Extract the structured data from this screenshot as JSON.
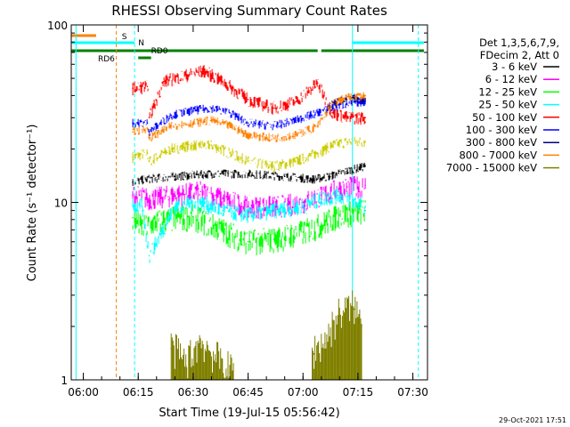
{
  "chart_data": {
    "type": "line",
    "title": "RHESSI Observing Summary Count Rates",
    "xlabel": "Start Time (19-Jul-15 05:56:42)",
    "ylabel": "Count Rate (s⁻¹ detector⁻¹)",
    "y_scale": "log",
    "ylim": [
      1,
      100
    ],
    "xlim": [
      "05:56:42",
      "07:34:00"
    ],
    "x_tick_labels": [
      "06:00",
      "06:15",
      "06:30",
      "06:45",
      "07:00",
      "07:15",
      "07:30"
    ],
    "y_tick_labels": [
      "1",
      "10",
      "100"
    ],
    "grid": false,
    "legend_header": [
      "Det 1,3,5,6,7,9,",
      "FDecim 2, Att 0"
    ],
    "legend_position": "right",
    "footer_date": "29-Oct-2021 17:51",
    "series": [
      {
        "name": "3 - 6 keV",
        "color": "#000000",
        "x": [
          "06:13:30",
          "06:17:00",
          "06:25:00",
          "06:35:00",
          "06:45:00",
          "06:55:00",
          "07:03:00",
          "07:07:00",
          "07:12:00",
          "07:17:00"
        ],
        "y": [
          13,
          13.5,
          14,
          14.5,
          14.5,
          14,
          13.5,
          14,
          15,
          16
        ]
      },
      {
        "name": "6 - 12 keV",
        "color": "#ff00ff",
        "x": [
          "06:13:30",
          "06:18:00",
          "06:25:00",
          "06:32:00",
          "06:38:00",
          "06:45:00",
          "06:52:00",
          "07:00:00",
          "07:05:00",
          "07:10:00",
          "07:17:00"
        ],
        "y": [
          11,
          10.5,
          11,
          11.5,
          10.5,
          9.5,
          9.5,
          10,
          11,
          12,
          12.5
        ]
      },
      {
        "name": "12 - 25 keV",
        "color": "#00ff00",
        "x": [
          "06:13:30",
          "06:16:00",
          "06:22:00",
          "06:30:00",
          "06:38:00",
          "06:45:00",
          "06:52:00",
          "07:00:00",
          "07:05:00",
          "07:10:00",
          "07:17:00"
        ],
        "y": [
          8.2,
          7.2,
          8.0,
          8.3,
          7.0,
          6.0,
          6.2,
          6.8,
          7.5,
          8.5,
          9.0
        ]
      },
      {
        "name": "25 - 50 keV",
        "color": "#00ffff",
        "x": [
          "06:13:30",
          "06:16:00",
          "06:18:00",
          "06:25:00",
          "06:32:00",
          "06:38:00",
          "06:45:00",
          "06:52:00",
          "07:00:00",
          "07:05:00",
          "07:10:00",
          "07:17:00"
        ],
        "y": [
          9.5,
          9.5,
          5.0,
          9.5,
          10.0,
          9.0,
          8.5,
          9.0,
          9.5,
          10.5,
          11.0,
          9.5
        ]
      },
      {
        "name": "50 - 100 keV",
        "color": "#ff0000",
        "x": [
          "06:13:30",
          "06:17:30",
          "06:18:00",
          "06:22:00",
          "06:28:00",
          "06:33:00",
          "06:38:00",
          "06:45:00",
          "06:52:00",
          "06:58:00",
          "07:04:00",
          "07:08:00",
          "07:12:00",
          "07:17:00"
        ],
        "y": [
          44,
          45,
          30,
          48,
          52,
          55,
          48,
          38,
          34,
          37,
          47,
          32,
          30,
          30
        ]
      },
      {
        "name": "100 - 300 keV",
        "color": "#0000ff",
        "x": [
          "06:13:30",
          "06:17:30",
          "06:18:00",
          "06:24:00",
          "06:30:00",
          "06:35:00",
          "06:40:00",
          "06:45:00",
          "06:52:00",
          "06:58:00",
          "07:04:00",
          "07:08:00",
          "07:12:00",
          "07:17:00"
        ],
        "y": [
          28,
          28,
          25,
          31,
          33,
          34,
          32,
          28,
          27,
          29,
          32,
          34,
          36,
          37
        ]
      },
      {
        "name": "300 - 800 keV",
        "color": "#000080",
        "x": [
          "07:07:00",
          "07:10:00",
          "07:13:00",
          "07:17:00"
        ],
        "y": [
          35,
          38,
          39,
          38
        ]
      },
      {
        "name": "800 - 7000 keV",
        "color": "#ff8000",
        "x": [
          "06:13:30",
          "06:17:30",
          "06:18:00",
          "06:24:00",
          "06:30:00",
          "06:35:00",
          "06:40:00",
          "06:45:00",
          "06:52:00",
          "06:58:00",
          "07:04:00",
          "07:08:00",
          "07:12:00",
          "07:17:00"
        ],
        "y": [
          25,
          26,
          23,
          27,
          28,
          29,
          27,
          24,
          23,
          24,
          27,
          36,
          39,
          40
        ]
      },
      {
        "name": "7000 - 15000 keV",
        "color": "#808000",
        "x": [
          "06:24:00",
          "06:28:00",
          "06:32:00",
          "06:36:00",
          "06:40:00",
          "07:03:00",
          "07:06:00",
          "07:10:00",
          "07:14:00",
          "07:16:00"
        ],
        "y": [
          1.5,
          1.2,
          1.6,
          1.3,
          1.1,
          1.4,
          1.6,
          2.3,
          2.5,
          2.0
        ]
      }
    ],
    "extra_series_lines": [
      {
        "color": "#cccc00",
        "x": [
          "06:13:30",
          "06:17:30",
          "06:18:00",
          "06:24:00",
          "06:30:00",
          "06:35:00",
          "06:40:00",
          "06:45:00",
          "06:52:00",
          "06:58:00",
          "07:04:00",
          "07:08:00",
          "07:12:00",
          "07:17:00"
        ],
        "y": [
          18,
          19,
          17,
          20,
          21,
          21,
          19,
          17,
          16,
          17,
          19,
          21,
          22,
          22
        ]
      }
    ],
    "annotations": [
      {
        "text": "S",
        "color": "#ff8000"
      },
      {
        "text": "N",
        "color": "#00cccc"
      },
      {
        "text": "RD6",
        "color": "#008000"
      },
      {
        "text": "RD0",
        "color": "#008000"
      }
    ],
    "vertical_markers": [
      {
        "time": "05:58:00",
        "color": "#00ffff",
        "style": "solid"
      },
      {
        "time": "06:09:00",
        "color": "#ff8000",
        "style": "dashed"
      },
      {
        "time": "06:14:00",
        "color": "#00ffff",
        "style": "dashed"
      },
      {
        "time": "07:13:30",
        "color": "#00ffff",
        "style": "solid"
      },
      {
        "time": "07:31:30",
        "color": "#00ffff",
        "style": "dashed"
      }
    ],
    "status_bars": [
      {
        "label": "S",
        "color": "#ff8000",
        "start": "05:56:42",
        "end": "06:03:30"
      },
      {
        "label": "N",
        "color": "#00ffff",
        "start": "05:56:42",
        "end": "06:14:00"
      },
      {
        "label": "N",
        "color": "#00ffff",
        "start": "07:13:30",
        "end": "07:33:00"
      },
      {
        "label": "RD6",
        "color": "#008000",
        "start": "05:56:42",
        "end": "07:04:00"
      },
      {
        "label": "RD0",
        "color": "#008000",
        "start": "07:05:00",
        "end": "07:33:00"
      }
    ]
  }
}
